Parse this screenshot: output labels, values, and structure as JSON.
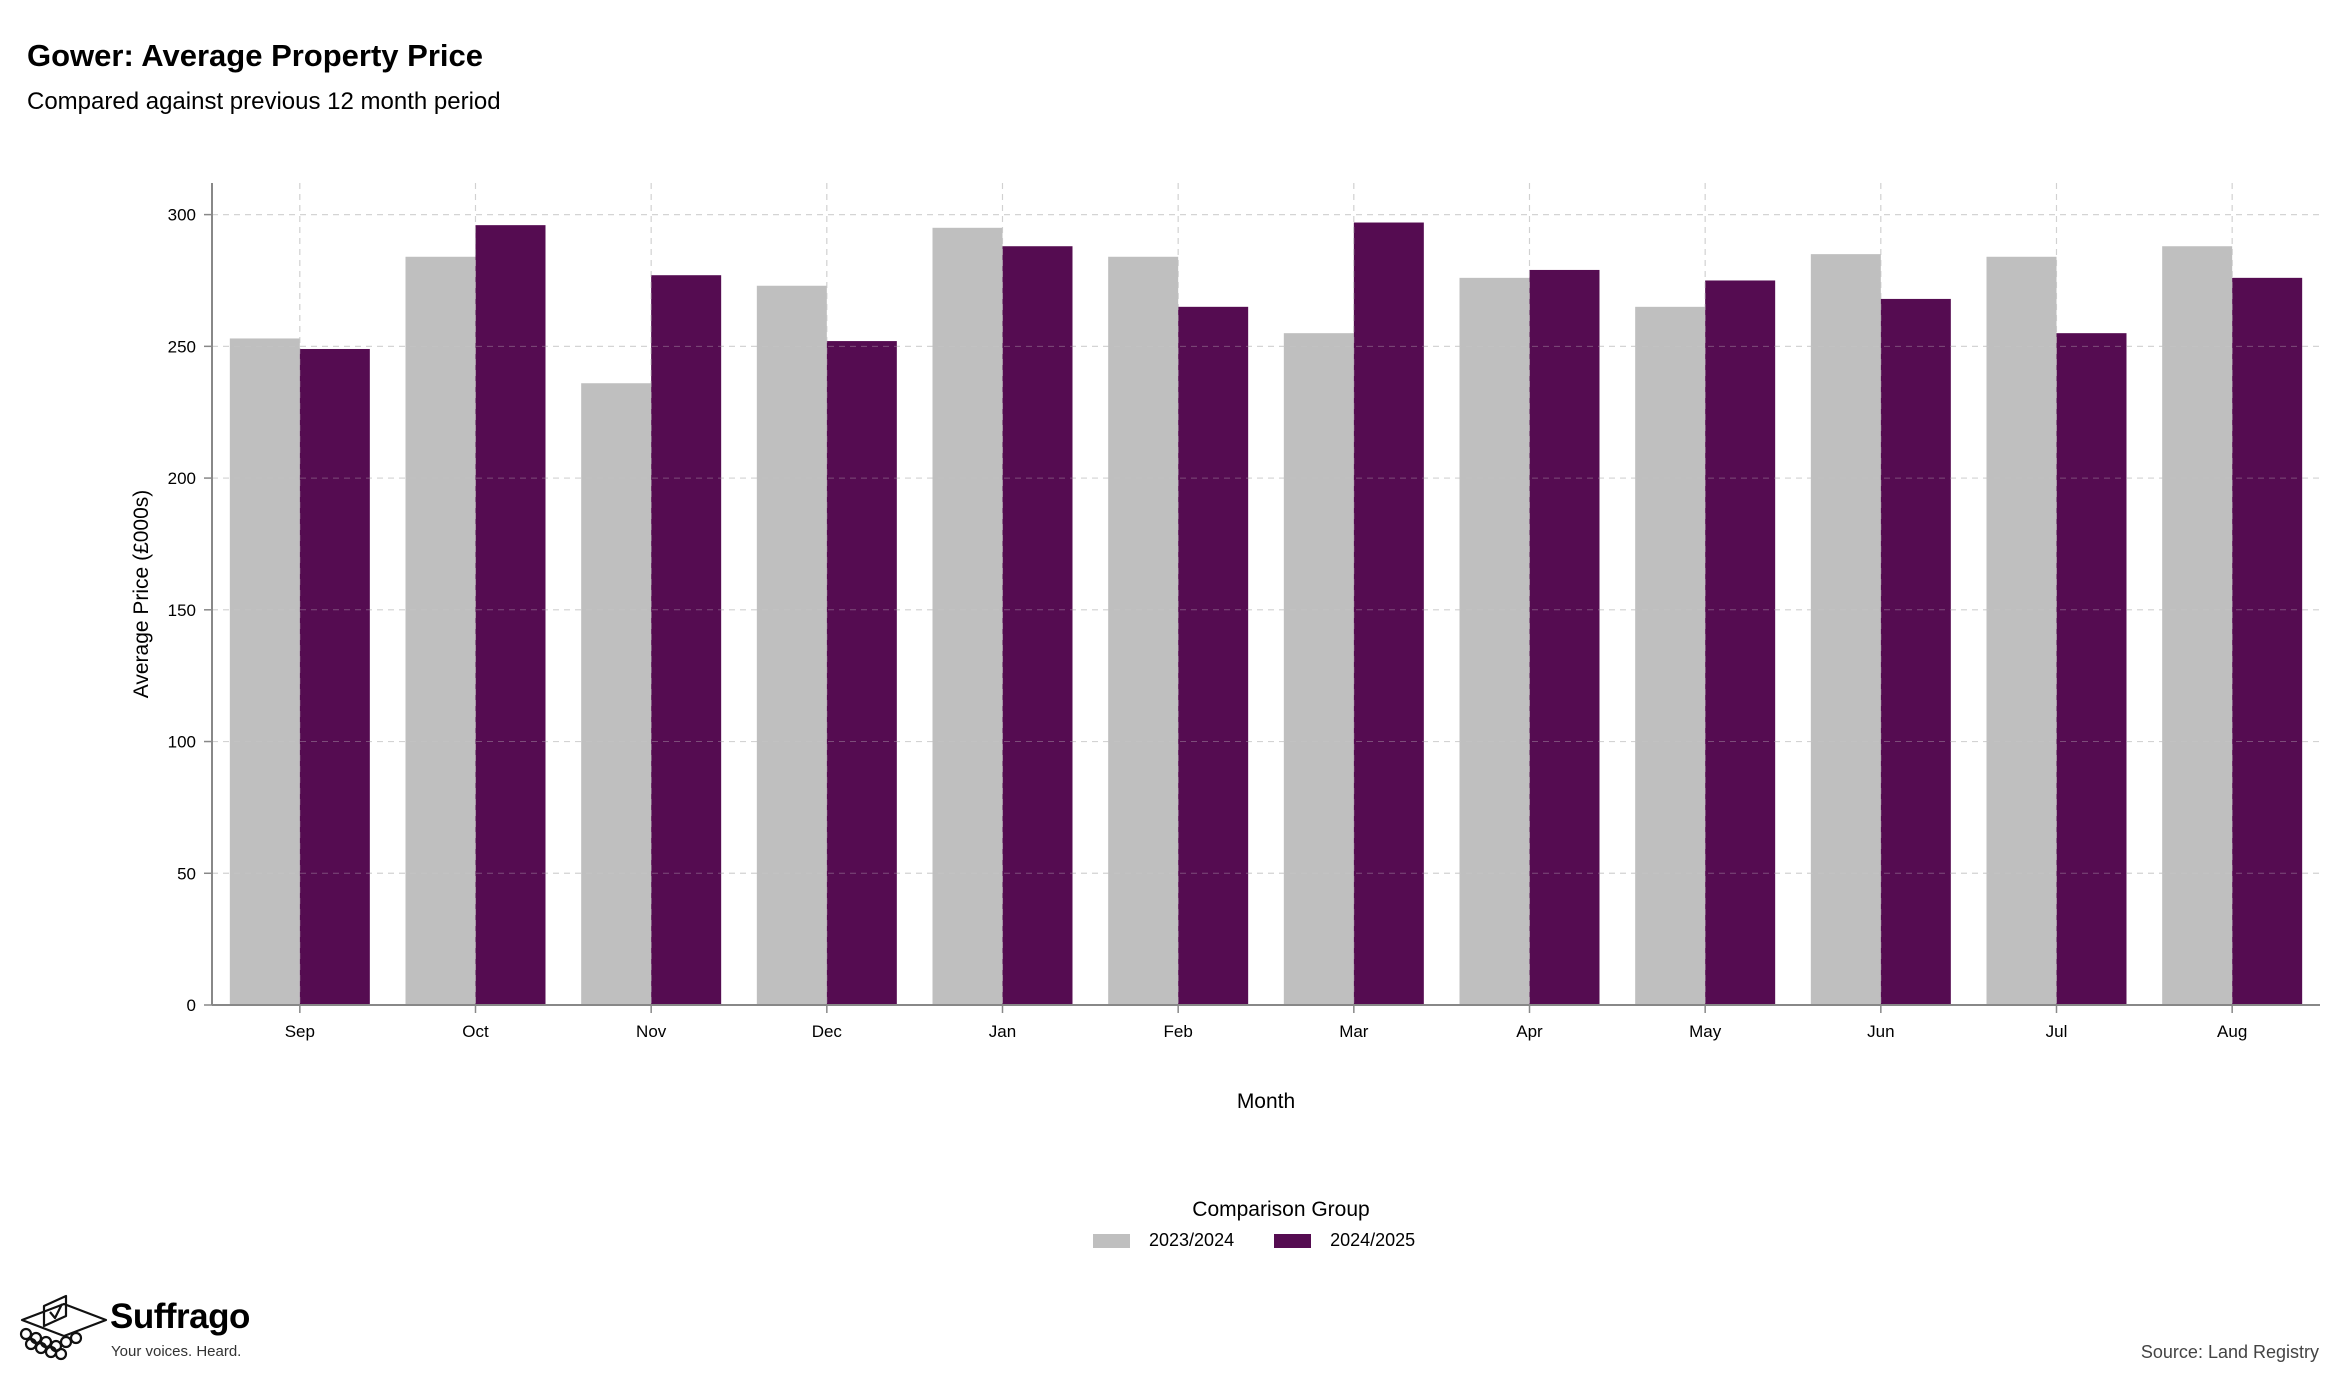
{
  "header": {
    "title": "Gower: Average Property Price",
    "subtitle": "Compared against previous 12 month period"
  },
  "chart_data": {
    "type": "bar",
    "categories": [
      "Sep",
      "Oct",
      "Nov",
      "Dec",
      "Jan",
      "Feb",
      "Mar",
      "Apr",
      "May",
      "Jun",
      "Jul",
      "Aug"
    ],
    "series": [
      {
        "name": "2023/2024",
        "color": "#bfbfbf",
        "values": [
          253,
          284,
          236,
          273,
          295,
          284,
          255,
          276,
          265,
          285,
          284,
          288
        ]
      },
      {
        "name": "2024/2025",
        "color": "#550c51",
        "values": [
          249,
          296,
          277,
          252,
          288,
          265,
          297,
          279,
          275,
          268,
          255,
          276
        ]
      }
    ],
    "xlabel": "Month",
    "ylabel": "Average Price (£000s)",
    "ylim": [
      0,
      312
    ],
    "yticks": [
      0,
      50,
      100,
      150,
      200,
      250,
      300
    ],
    "grid": true,
    "legend_title": "Comparison Group",
    "legend_position": "bottom"
  },
  "footer": {
    "brand": "Suffrago",
    "tagline": "Your voices. Heard.",
    "source": "Source: Land Registry",
    "logo_icon": "ballot-box-icon"
  }
}
